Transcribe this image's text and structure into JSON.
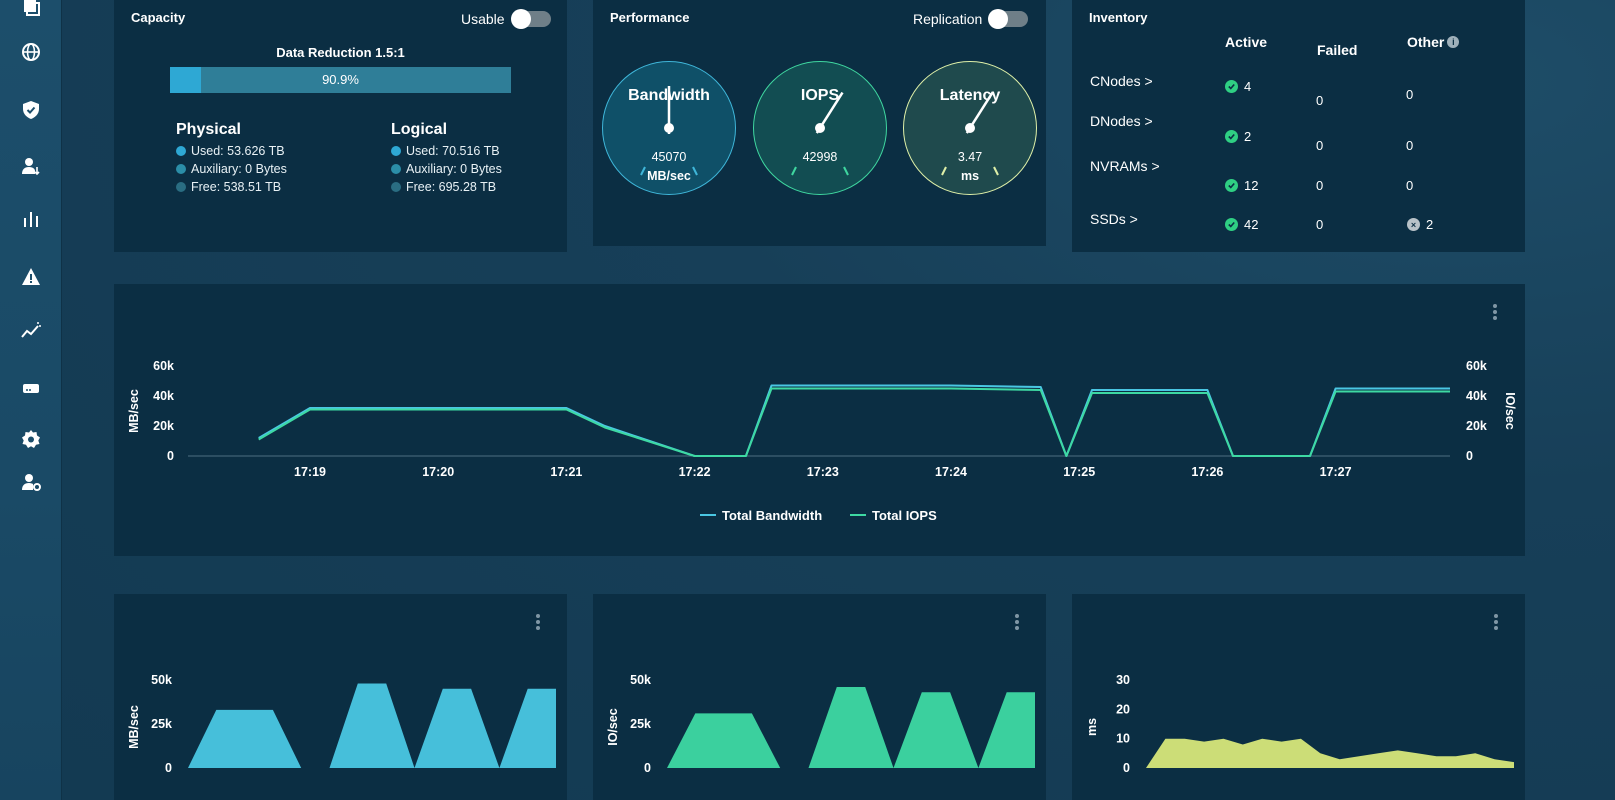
{
  "sidebar": {
    "items": [
      {
        "icon": "layers-icon"
      },
      {
        "icon": "globe-icon"
      },
      {
        "icon": "shield-icon"
      },
      {
        "icon": "user-sync-icon"
      },
      {
        "icon": "bar-chart-icon"
      },
      {
        "icon": "warning-icon"
      },
      {
        "icon": "trend-icon"
      },
      {
        "icon": "drive-icon"
      },
      {
        "icon": "gear-icon"
      },
      {
        "icon": "user-settings-icon"
      }
    ]
  },
  "capacity": {
    "title": "Capacity",
    "toggle_label": "Usable",
    "data_reduction_label": "Data Reduction 1.5:1",
    "bar_fraction": 0.09,
    "bar_label": "90.9%",
    "physical": {
      "title": "Physical",
      "used": "Used: 53.626 TB",
      "auxiliary": "Auxiliary: 0 Bytes",
      "free": "Free: 538.51 TB"
    },
    "logical": {
      "title": "Logical",
      "used": "Used: 70.516 TB",
      "auxiliary": "Auxiliary: 0 Bytes",
      "free": "Free: 695.28 TB"
    },
    "colors": {
      "used": "#2ea8d4",
      "auxiliary": "#2b8ea8",
      "free": "#2a6d82"
    }
  },
  "performance": {
    "title": "Performance",
    "toggle_label": "Replication",
    "gauges": [
      {
        "title": "Bandwidth",
        "value": "45070",
        "unit": "MB/sec",
        "color": "#3fb6d9",
        "bg": "#0f5068",
        "level": 0.5
      },
      {
        "title": "IOPS",
        "value": "42998",
        "unit": "",
        "color": "#3fd7a0",
        "bg": "#124d52",
        "level": 0.62
      },
      {
        "title": "Latency",
        "value": "3.47",
        "unit": "ms",
        "color": "#dff0a8",
        "bg": "#1f4a4d",
        "level": 0.62
      }
    ]
  },
  "inventory": {
    "title": "Inventory",
    "headers": {
      "active": "Active",
      "failed": "Failed",
      "other": "Other"
    },
    "rows": [
      {
        "label": "CNodes >",
        "active": "4",
        "failed": "0",
        "other": "0"
      },
      {
        "label": "DNodes >",
        "active": "2",
        "failed": "0",
        "other": "0"
      },
      {
        "label": "NVRAMs >",
        "active": "12",
        "failed": "0",
        "other": "0"
      },
      {
        "label": "SSDs >",
        "active": "42",
        "failed": "0",
        "other": "2"
      }
    ]
  },
  "main_chart": {
    "y_left_label": "MB/sec",
    "y_right_label": "IO/sec",
    "y_ticks": [
      "60k",
      "40k",
      "20k",
      "0"
    ],
    "x_ticks": [
      "17:19",
      "17:20",
      "17:21",
      "17:22",
      "17:23",
      "17:24",
      "17:25",
      "17:26",
      "17:27"
    ],
    "legend": [
      "Total Bandwidth",
      "Total IOPS"
    ]
  },
  "bandwidth_chart": {
    "y_label": "MB/sec",
    "y_ticks": [
      "50k",
      "25k",
      "0"
    ],
    "color": "#4ac7e3"
  },
  "iops_chart": {
    "y_label": "IO/sec",
    "y_ticks": [
      "50k",
      "25k",
      "0"
    ],
    "color": "#3ed9a3"
  },
  "latency_chart": {
    "y_label": "ms",
    "y_ticks": [
      "30",
      "20",
      "10",
      "0"
    ],
    "color": "#d7e77a"
  },
  "chart_data": [
    {
      "type": "line",
      "title": "",
      "xlabel": "",
      "ylabel": "MB/sec",
      "y2label": "IO/sec",
      "ylim": [
        0,
        60000
      ],
      "x": [
        "17:18.6",
        "17:19",
        "17:20",
        "17:21",
        "17:21.3",
        "17:22",
        "17:22.4",
        "17:22.6",
        "17:23",
        "17:24",
        "17:24.7",
        "17:24.9",
        "17:25.1",
        "17:26",
        "17:26.2",
        "17:26.8",
        "17:27",
        "17:28"
      ],
      "series": [
        {
          "name": "Total Bandwidth",
          "color": "#4ac7e3",
          "values": [
            12000,
            32000,
            32000,
            32000,
            20000,
            0,
            0,
            47000,
            47000,
            47000,
            46000,
            0,
            44000,
            44000,
            0,
            0,
            45000,
            45000
          ]
        },
        {
          "name": "Total IOPS",
          "color": "#3ed9a3",
          "values": [
            11000,
            31000,
            31000,
            31000,
            19000,
            0,
            0,
            45000,
            45000,
            45000,
            44000,
            0,
            42000,
            42000,
            0,
            0,
            43000,
            43000
          ]
        }
      ]
    },
    {
      "type": "area",
      "ylabel": "MB/sec",
      "ylim": [
        0,
        50000
      ],
      "values": [
        0,
        33000,
        33000,
        33000,
        0,
        0,
        48000,
        48000,
        0,
        45000,
        45000,
        0,
        45000,
        45000
      ]
    },
    {
      "type": "area",
      "ylabel": "IO/sec",
      "ylim": [
        0,
        50000
      ],
      "values": [
        0,
        31000,
        31000,
        31000,
        0,
        0,
        46000,
        46000,
        0,
        43000,
        43000,
        0,
        43000,
        43000
      ]
    },
    {
      "type": "area",
      "ylabel": "ms",
      "ylim": [
        0,
        30
      ],
      "values": [
        0,
        10,
        10,
        9,
        10,
        8,
        10,
        9,
        10,
        5,
        3,
        4,
        5,
        6,
        5,
        4,
        4,
        5,
        3,
        2
      ]
    }
  ]
}
